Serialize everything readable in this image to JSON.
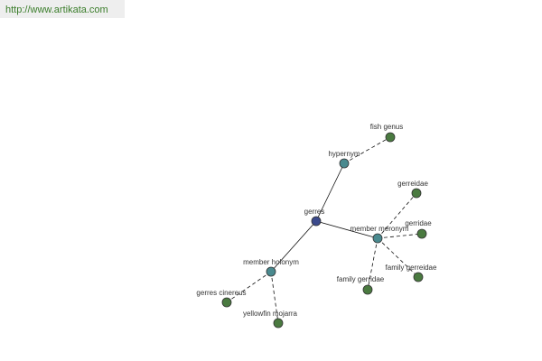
{
  "header": {
    "url": "http://www.artikata.com"
  },
  "nodes": [
    {
      "label": "gerres"
    },
    {
      "label": "hypernym"
    },
    {
      "label": "member holonym"
    },
    {
      "label": "member meronym"
    },
    {
      "label": "fish genus"
    },
    {
      "label": "gerreidae"
    },
    {
      "label": "gerridae"
    },
    {
      "label": "family gerreidae"
    },
    {
      "label": "family gerridae"
    },
    {
      "label": "gerres cinereus"
    },
    {
      "label": "yellowfin mojarra"
    }
  ]
}
